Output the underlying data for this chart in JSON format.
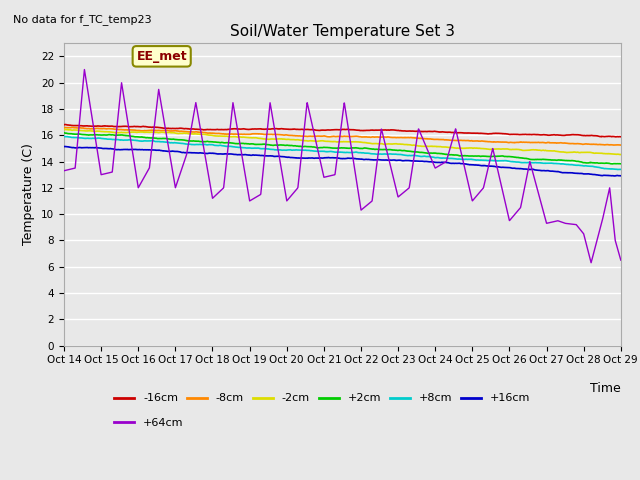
{
  "title": "Soil/Water Temperature Set 3",
  "ylabel": "Temperature (C)",
  "xlabel": "Time",
  "top_note": "No data for f_TC_temp23",
  "annotation": "EE_met",
  "ylim": [
    0,
    23
  ],
  "yticks": [
    0,
    2,
    4,
    6,
    8,
    10,
    12,
    14,
    16,
    18,
    20,
    22
  ],
  "x_labels": [
    "Oct 14",
    "Oct 15",
    "Oct 16",
    "Oct 17",
    "Oct 18",
    "Oct 19",
    "Oct 20",
    "Oct 21",
    "Oct 22",
    "Oct 23",
    "Oct 24",
    "Oct 25",
    "Oct 26",
    "Oct 27",
    "Oct 28",
    "Oct 29"
  ],
  "bg_color": "#e8e8e8",
  "plot_bg_color": "#e8e8e8",
  "grid_color": "#ffffff",
  "smooth_labels": [
    "-16cm",
    "-8cm",
    "-2cm",
    "+2cm",
    "+8cm",
    "+16cm"
  ],
  "smooth_colors": [
    "#cc0000",
    "#ff8800",
    "#dddd00",
    "#00cc00",
    "#00cccc",
    "#0000cc"
  ],
  "smooth_starts": [
    17.0,
    16.7,
    16.4,
    16.1,
    15.9,
    15.3
  ],
  "smooth_ends": [
    15.7,
    15.1,
    14.6,
    13.9,
    13.5,
    13.0
  ],
  "purple_label": "+64cm",
  "purple_color": "#9900cc",
  "purple_ctrl_x": [
    0,
    0.3,
    0.55,
    1.0,
    1.3,
    1.55,
    2.0,
    2.3,
    2.55,
    3.0,
    3.3,
    3.55,
    4.0,
    4.3,
    4.55,
    5.0,
    5.3,
    5.55,
    6.0,
    6.3,
    6.55,
    7.0,
    7.3,
    7.55,
    8.0,
    8.3,
    8.55,
    9.0,
    9.3,
    9.55,
    10.0,
    10.3,
    10.55,
    11.0,
    11.3,
    11.55,
    12.0,
    12.3,
    12.55,
    13.0,
    13.3,
    13.5,
    13.8,
    14.0,
    14.2,
    14.5,
    14.7,
    14.85,
    15.0
  ],
  "purple_ctrl_y": [
    13.3,
    13.5,
    21.0,
    13.0,
    13.2,
    20.0,
    12.0,
    13.5,
    19.5,
    12.0,
    14.5,
    18.5,
    11.2,
    12.0,
    18.5,
    11.0,
    11.5,
    18.5,
    11.0,
    12.0,
    18.5,
    12.8,
    13.0,
    18.5,
    10.3,
    11.0,
    16.5,
    11.3,
    12.0,
    16.5,
    13.5,
    14.0,
    16.5,
    11.0,
    12.0,
    15.0,
    9.5,
    10.5,
    14.0,
    9.3,
    9.5,
    9.3,
    9.2,
    8.5,
    6.3,
    9.5,
    12.0,
    8.0,
    6.5
  ]
}
